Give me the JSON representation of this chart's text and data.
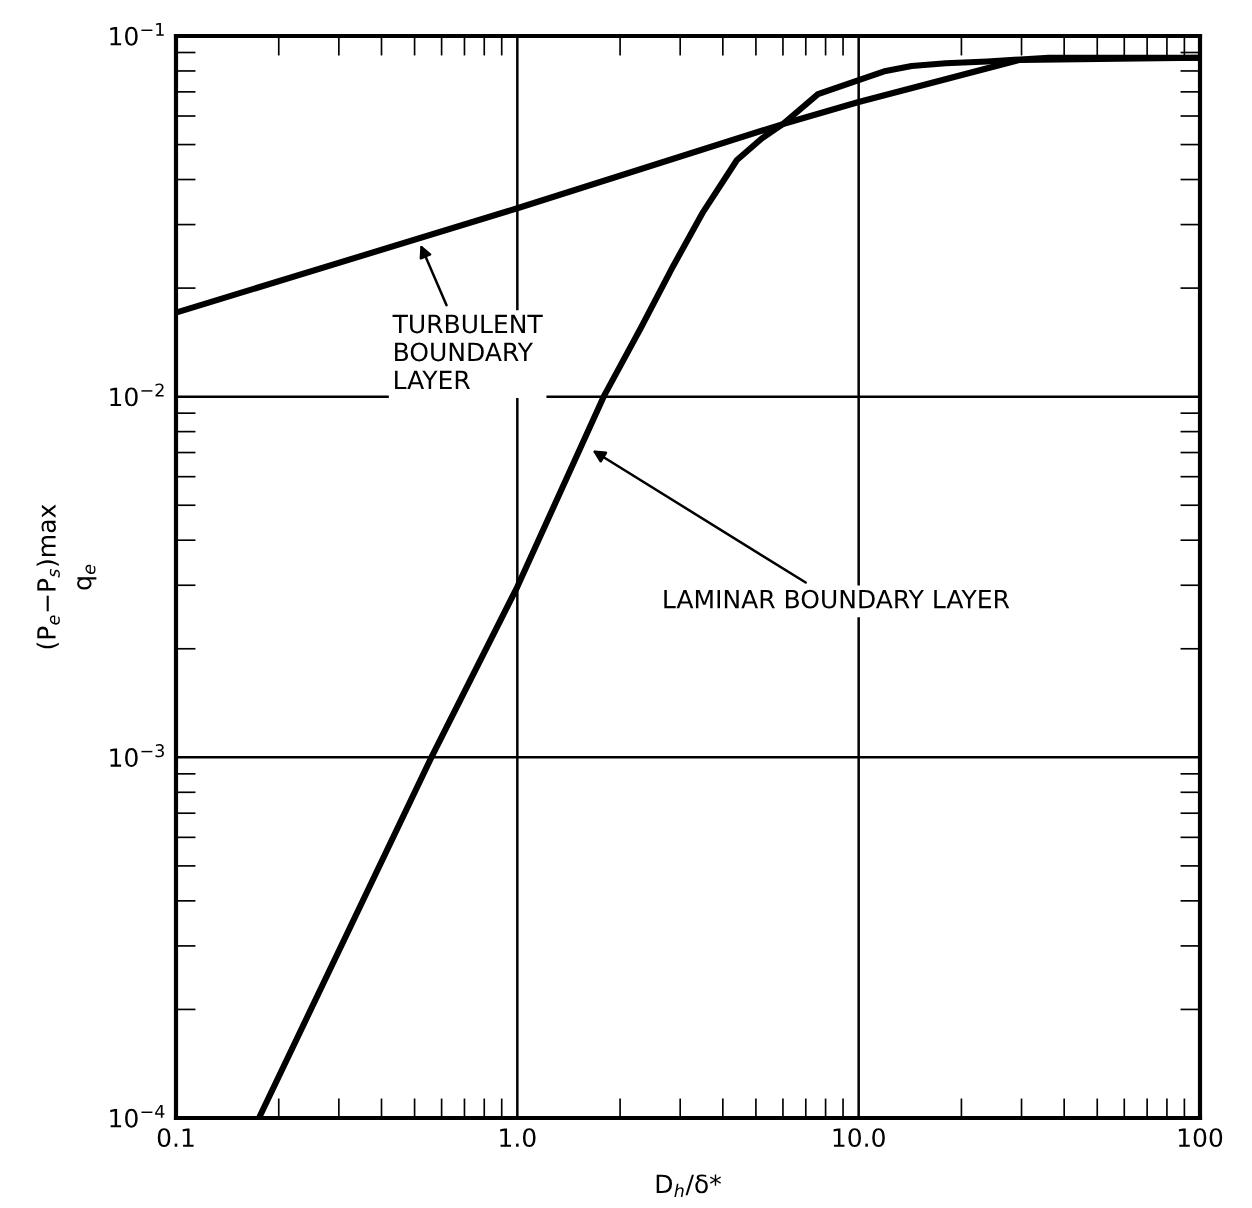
{
  "chart_data": {
    "type": "line",
    "xlabel": "D$_{h}$/δ*",
    "ylabel": "(P$_{e}$−P$_{s}$)max\nq$_{e}$",
    "log": "xy",
    "grid": true,
    "marker": "none",
    "line_style": "solid",
    "xlim": [
      0.1,
      100
    ],
    "xticks": [
      0.1,
      {
        "value": 1,
        "label": "1.0"
      },
      {
        "value": 10,
        "label": "10.0"
      },
      100
    ],
    "ylim": [
      0.0001,
      0.1
    ],
    "yticks": [
      {
        "value": 0.0001,
        "label": "10$^{−4}$"
      },
      {
        "value": 0.001,
        "label": "10$^{−3}$"
      },
      {
        "value": 0.01,
        "label": "10$^{−2}$"
      },
      {
        "value": 0.1,
        "label": "10$^{−1}$"
      }
    ],
    "series": [
      {
        "color": "#000000",
        "x": [
          0.1,
          1,
          6.0,
          10,
          29.5,
          100
        ],
        "values": [
          0.0171,
          0.0333,
          0.057,
          0.0656,
          0.0858,
          0.087
        ]
      },
      {
        "color": "#000000",
        "x": [
          0.175,
          0.56,
          1,
          1.79,
          2.3,
          2.86,
          3.5,
          4.4,
          5.2,
          6.0,
          7.6,
          10,
          12,
          14.3,
          18,
          23.8,
          36,
          100
        ],
        "values": [
          0.0001,
          0.001,
          0.00297,
          0.01,
          0.0155,
          0.023,
          0.0325,
          0.0453,
          0.052,
          0.057,
          0.069,
          0.0755,
          0.08,
          0.0826,
          0.084,
          0.085,
          0.087,
          0.087
        ]
      }
    ],
    "annotations": [
      {
        "text": "TURBULENT\nBOUNDARY\nLAYER",
        "x": 0.52,
        "y": 0.0264
      },
      {
        "text": "LAMINAR BOUNDARY LAYER",
        "x": 1.66,
        "y": 0.0071
      }
    ]
  }
}
